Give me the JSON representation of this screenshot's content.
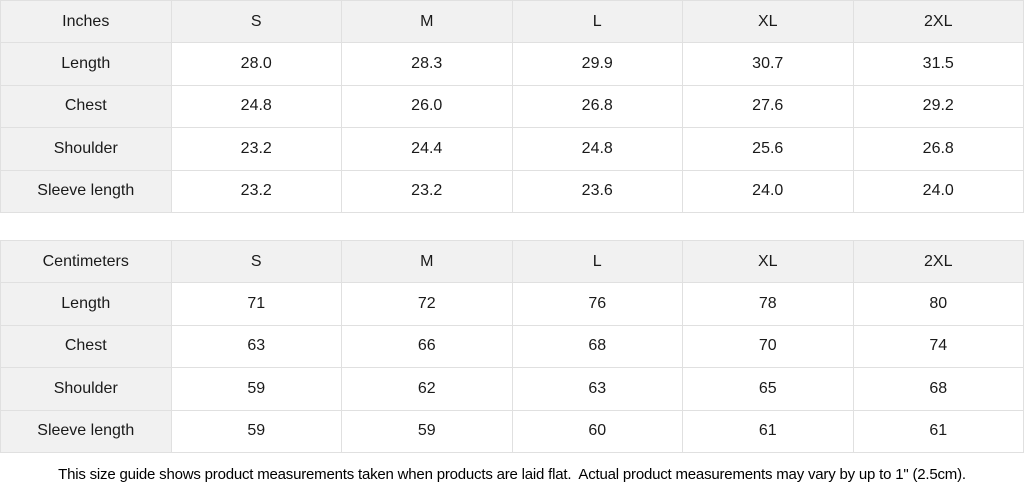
{
  "chart_data": [
    {
      "type": "table",
      "title": "Inches size guide",
      "columns": [
        "Inches",
        "S",
        "M",
        "L",
        "XL",
        "2XL"
      ],
      "rows": [
        [
          "Length",
          "28.0",
          "28.3",
          "29.9",
          "30.7",
          "31.5"
        ],
        [
          "Chest",
          "24.8",
          "26.0",
          "26.8",
          "27.6",
          "29.2"
        ],
        [
          "Shoulder",
          "23.2",
          "24.4",
          "24.8",
          "25.6",
          "26.8"
        ],
        [
          "Sleeve length",
          "23.2",
          "23.2",
          "23.6",
          "24.0",
          "24.0"
        ]
      ]
    },
    {
      "type": "table",
      "title": "Centimeters size guide",
      "columns": [
        "Centimeters",
        "S",
        "M",
        "L",
        "XL",
        "2XL"
      ],
      "rows": [
        [
          "Length",
          "71",
          "72",
          "76",
          "78",
          "80"
        ],
        [
          "Chest",
          "63",
          "66",
          "68",
          "70",
          "74"
        ],
        [
          "Shoulder",
          "59",
          "62",
          "63",
          "65",
          "68"
        ],
        [
          "Sleeve length",
          "59",
          "59",
          "60",
          "61",
          "61"
        ]
      ]
    }
  ],
  "footer": {
    "note": "This size guide shows product measurements taken when products are laid flat.  Actual product measurements may vary by up to 1\" (2.5cm)."
  },
  "colors": {
    "shaded_cell_bg": "#f1f1f1",
    "cell_bg": "#ffffff",
    "border": "#e0e0e0",
    "text": "#1a1a1a"
  }
}
